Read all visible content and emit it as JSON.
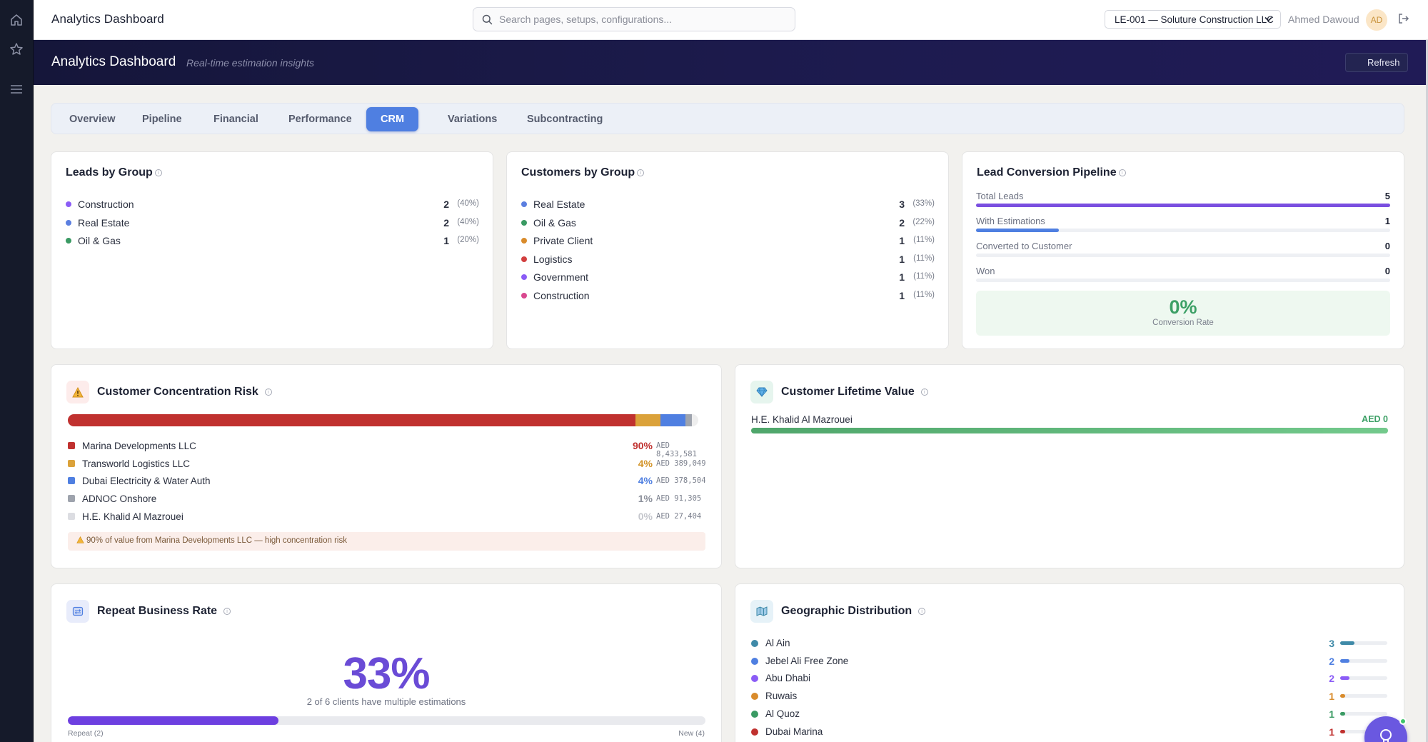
{
  "app": {
    "title": "Analytics Dashboard"
  },
  "search": {
    "placeholder": "Search pages, setups, configurations..."
  },
  "header": {
    "entity": "LE-001 — Soluture Construction LLC",
    "user_name": "Ahmed Dawoud",
    "user_initials": "AD"
  },
  "banner": {
    "title": "Analytics Dashboard",
    "subtitle": "Real-time estimation insights",
    "refresh_label": "Refresh"
  },
  "tabs": [
    {
      "label": "Overview",
      "active": false
    },
    {
      "label": "Pipeline",
      "active": false
    },
    {
      "label": "Financial",
      "active": false
    },
    {
      "label": "Performance",
      "active": false
    },
    {
      "label": "CRM",
      "active": true
    },
    {
      "label": "Variations",
      "active": false
    },
    {
      "label": "Subcontracting",
      "active": false
    }
  ],
  "leads_by_group": {
    "title": "Leads by Group",
    "items": [
      {
        "label": "Construction",
        "count": "2",
        "pct": "(40%)",
        "color": "#8b5cf6"
      },
      {
        "label": "Real Estate",
        "count": "2",
        "pct": "(40%)",
        "color": "#5b7fe0"
      },
      {
        "label": "Oil & Gas",
        "count": "1",
        "pct": "(20%)",
        "color": "#3a9a63"
      }
    ]
  },
  "customers_by_group": {
    "title": "Customers by Group",
    "items": [
      {
        "label": "Real Estate",
        "count": "3",
        "pct": "(33%)",
        "color": "#5b7fe0"
      },
      {
        "label": "Oil & Gas",
        "count": "2",
        "pct": "(22%)",
        "color": "#3a9a63"
      },
      {
        "label": "Private Client",
        "count": "1",
        "pct": "(11%)",
        "color": "#d98b2b"
      },
      {
        "label": "Logistics",
        "count": "1",
        "pct": "(11%)",
        "color": "#d23f3f"
      },
      {
        "label": "Government",
        "count": "1",
        "pct": "(11%)",
        "color": "#8b5cf6"
      },
      {
        "label": "Construction",
        "count": "1",
        "pct": "(11%)",
        "color": "#d9488f"
      }
    ]
  },
  "lead_conversion": {
    "title": "Lead Conversion Pipeline",
    "stages": [
      {
        "label": "Total Leads",
        "value": "5",
        "fraction": 1.0,
        "color": "#7a4fe0"
      },
      {
        "label": "With Estimations",
        "value": "1",
        "fraction": 0.2,
        "color": "#4f7fe1"
      },
      {
        "label": "Converted to Customer",
        "value": "0",
        "fraction": 0,
        "color": "#3da066"
      },
      {
        "label": "Won",
        "value": "0",
        "fraction": 0,
        "color": "#3da066"
      }
    ],
    "rate": "0%",
    "rate_label": "Conversion Rate"
  },
  "concentration": {
    "title": "Customer Concentration Risk",
    "bar_segments": [
      {
        "fraction": 0.9,
        "color": "#c0312f"
      },
      {
        "fraction": 0.04,
        "color": "#dba23a"
      },
      {
        "fraction": 0.04,
        "color": "#4f7fe1"
      },
      {
        "fraction": 0.01,
        "color": "#9ea3ad"
      }
    ],
    "items": [
      {
        "label": "Marina Developments LLC",
        "pct": "90%",
        "amount": "AED 8,433,581",
        "color": "#c0312f",
        "pct_color": "#c0312f"
      },
      {
        "label": "Transworld Logistics LLC",
        "pct": "4%",
        "amount": "AED 389,049",
        "color": "#dba23a",
        "pct_color": "#d39429"
      },
      {
        "label": "Dubai Electricity & Water Auth",
        "pct": "4%",
        "amount": "AED 378,504",
        "color": "#4f7fe1",
        "pct_color": "#4f7fe1"
      },
      {
        "label": "ADNOC Onshore",
        "pct": "1%",
        "amount": "AED 91,305",
        "color": "#9ea3ad",
        "pct_color": "#8d919c"
      },
      {
        "label": "H.E. Khalid Al Mazrouei",
        "pct": "0%",
        "amount": "AED 27,404",
        "color": "#dcdde2",
        "pct_color": "#c5c7cd"
      }
    ],
    "warning": "90% of value from Marina Developments LLC — high concentration risk"
  },
  "clv": {
    "title": "Customer Lifetime Value",
    "items": [
      {
        "label": "H.E. Khalid Al Mazrouei",
        "value": "AED 0"
      }
    ]
  },
  "repeat": {
    "title": "Repeat Business Rate",
    "rate": "33%",
    "subtitle": "2 of 6 clients have multiple estimations",
    "fraction": 0.33,
    "repeat_label": "Repeat (2)",
    "new_label": "New (4)"
  },
  "geo": {
    "title": "Geographic Distribution",
    "items": [
      {
        "label": "Al Ain",
        "count": "3",
        "fraction": 0.3,
        "color": "#3f8aa8"
      },
      {
        "label": "Jebel Ali Free Zone",
        "count": "2",
        "fraction": 0.2,
        "color": "#4f7fe1"
      },
      {
        "label": "Abu Dhabi",
        "count": "2",
        "fraction": 0.2,
        "color": "#8b5cf6"
      },
      {
        "label": "Ruwais",
        "count": "1",
        "fraction": 0.1,
        "color": "#d98b2b"
      },
      {
        "label": "Al Quoz",
        "count": "1",
        "fraction": 0.1,
        "color": "#3a9a63"
      },
      {
        "label": "Dubai Marina",
        "count": "1",
        "fraction": 0.1,
        "color": "#c0312f"
      }
    ]
  }
}
